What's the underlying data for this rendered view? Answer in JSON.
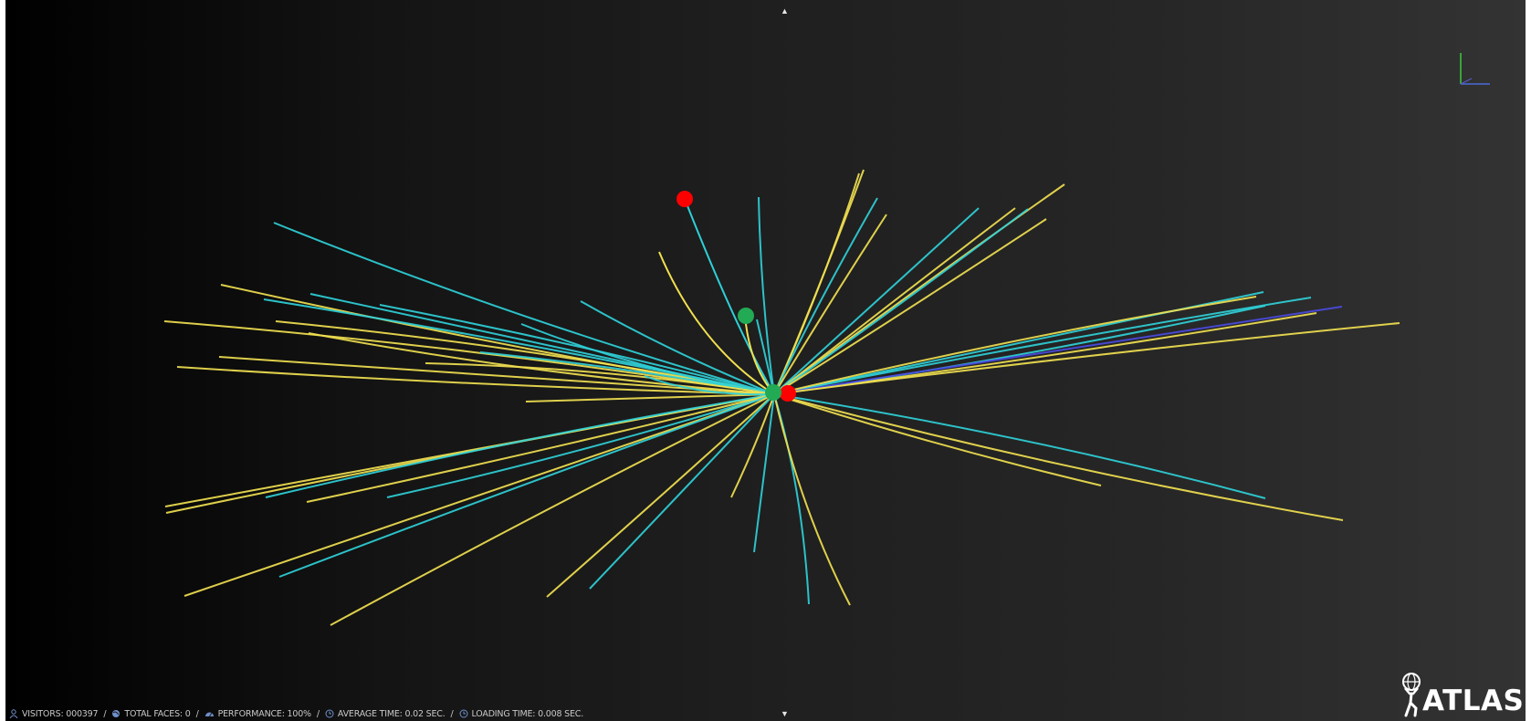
{
  "status_bar": {
    "visitors": "VISITORS: 000397",
    "total_faces": "TOTAL FACES: 0",
    "performance": "PERFORMANCE: 100%",
    "average_time": "AVERAGE TIME: 0.02 SEC.",
    "loading_time": "LOADING TIME: 0.008 SEC.",
    "separator": "/",
    "icons": [
      "user-icon",
      "globe-icon",
      "speedometer-icon",
      "clock-icon",
      "clock-icon"
    ]
  },
  "logo": {
    "text": "ATLAS"
  },
  "controls": {
    "toggle_up": "▲",
    "toggle_down": "▼"
  },
  "colors": {
    "track_cyan": "#2fd0d8",
    "track_yellow": "#f0e050",
    "track_blue": "#4a4ae0",
    "muon_red": "#ff0000",
    "electron_green": "#22aa55",
    "status_icon": "#6f8fc9"
  }
}
